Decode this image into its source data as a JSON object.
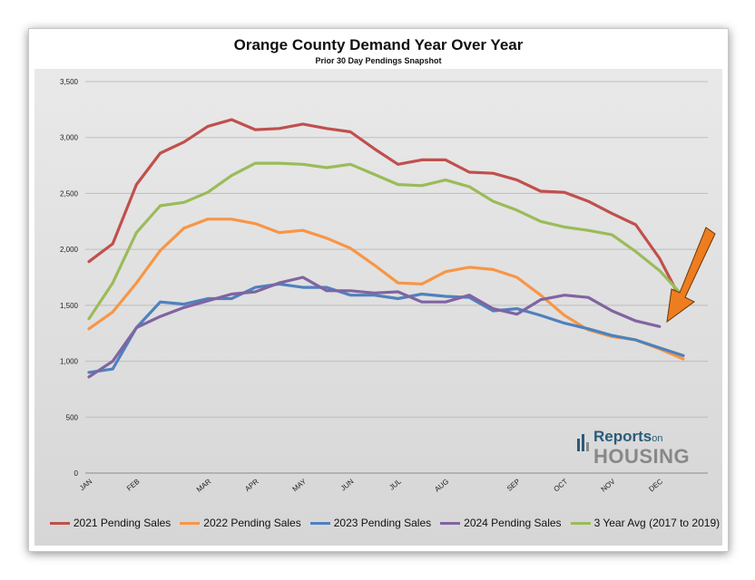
{
  "chart_data": {
    "type": "line",
    "title": "Orange County Demand Year Over Year",
    "subtitle": "Prior 30 Day Pendings Snapshot",
    "ylim": [
      0,
      3500
    ],
    "yticks": [
      0,
      500,
      1000,
      1500,
      2000,
      2500,
      3000,
      3500
    ],
    "ytick_labels": [
      "0",
      "500",
      "1,000",
      "1,500",
      "2,000",
      "2,500",
      "3,000",
      "3,500"
    ],
    "xticks": [
      {
        "label": "JAN",
        "index": 0
      },
      {
        "label": "FEB",
        "index": 2
      },
      {
        "label": "MAR",
        "index": 5
      },
      {
        "label": "APR",
        "index": 7
      },
      {
        "label": "MAY",
        "index": 9
      },
      {
        "label": "JUN",
        "index": 11
      },
      {
        "label": "JUL",
        "index": 13
      },
      {
        "label": "AUG",
        "index": 15
      },
      {
        "label": "SEP",
        "index": 18
      },
      {
        "label": "OCT",
        "index": 20
      },
      {
        "label": "NOV",
        "index": 22
      },
      {
        "label": "DEC",
        "index": 24
      }
    ],
    "grid": true,
    "legend_position": "bottom",
    "series": [
      {
        "name": "2021 Pending Sales",
        "color": "#c0504d",
        "values": [
          1890,
          2050,
          2580,
          2860,
          2960,
          3100,
          3160,
          3070,
          3080,
          3120,
          3080,
          3050,
          2900,
          2760,
          2800,
          2800,
          2690,
          2680,
          2620,
          2520,
          2510,
          2430,
          2320,
          2220,
          1920,
          1510
        ]
      },
      {
        "name": "2022 Pending Sales",
        "color": "#f79646",
        "values": [
          1290,
          1440,
          1700,
          1990,
          2190,
          2270,
          2270,
          2230,
          2150,
          2170,
          2100,
          2010,
          1860,
          1700,
          1690,
          1800,
          1840,
          1820,
          1750,
          1590,
          1410,
          1280,
          1220,
          1190,
          1110,
          1020
        ]
      },
      {
        "name": "2023 Pending Sales",
        "color": "#4f81bd",
        "values": [
          900,
          930,
          1300,
          1530,
          1510,
          1560,
          1560,
          1660,
          1690,
          1660,
          1660,
          1590,
          1590,
          1560,
          1600,
          1580,
          1570,
          1450,
          1470,
          1410,
          1340,
          1290,
          1230,
          1190,
          1120,
          1050
        ]
      },
      {
        "name": "2024 Pending Sales",
        "color": "#8064a2",
        "values": [
          860,
          1000,
          1300,
          1400,
          1480,
          1540,
          1600,
          1620,
          1700,
          1750,
          1630,
          1630,
          1610,
          1620,
          1530,
          1530,
          1590,
          1470,
          1420,
          1550,
          1590,
          1570,
          1450,
          1360,
          1310
        ]
      },
      {
        "name": "3 Year Avg (2017 to 2019)",
        "color": "#9bbb59",
        "values": [
          1380,
          1700,
          2150,
          2390,
          2420,
          2510,
          2660,
          2770,
          2770,
          2760,
          2730,
          2760,
          2670,
          2580,
          2570,
          2620,
          2560,
          2430,
          2350,
          2250,
          2200,
          2170,
          2130,
          1980,
          1810,
          1580
        ]
      }
    ]
  },
  "logo": {
    "reports": "Reports",
    "on": "on",
    "housing": "HOUSING"
  }
}
